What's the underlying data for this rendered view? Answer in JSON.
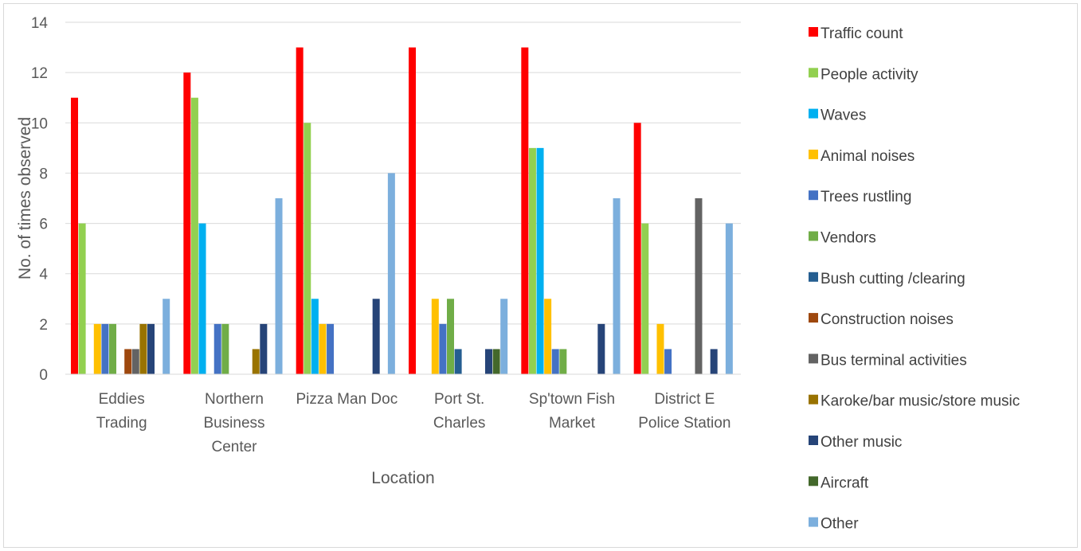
{
  "chart_data": {
    "type": "bar",
    "title": "",
    "xlabel": "Location",
    "ylabel": "No. of times observed",
    "ylim": [
      0,
      14
    ],
    "yticks": [
      0,
      2,
      4,
      6,
      8,
      10,
      12,
      14
    ],
    "grid": true,
    "legend_position": "right",
    "categories": [
      [
        "Eddies",
        "Trading"
      ],
      [
        "Northern",
        "Business",
        "Center"
      ],
      [
        "Pizza Man Doc"
      ],
      [
        "Port St.",
        "Charles"
      ],
      [
        "Sp'town Fish",
        "Market"
      ],
      [
        "District E",
        "Police Station"
      ]
    ],
    "series": [
      {
        "name": "Traffic count",
        "color": "#ff0000",
        "values": [
          11,
          12,
          13,
          13,
          13,
          10
        ]
      },
      {
        "name": "People activity",
        "color": "#92d050",
        "values": [
          6,
          11,
          10,
          0,
          9,
          6
        ]
      },
      {
        "name": "Waves",
        "color": "#00b0f0",
        "values": [
          0,
          6,
          3,
          0,
          9,
          0
        ]
      },
      {
        "name": "Animal noises",
        "color": "#ffc000",
        "values": [
          2,
          0,
          2,
          3,
          3,
          2
        ]
      },
      {
        "name": " Trees rustling",
        "color": "#4472c4",
        "values": [
          2,
          2,
          2,
          2,
          1,
          1
        ]
      },
      {
        "name": "Vendors",
        "color": "#70ad47",
        "values": [
          2,
          2,
          0,
          3,
          1,
          0
        ]
      },
      {
        "name": "Bush cutting /clearing",
        "color": "#255e91",
        "values": [
          0,
          0,
          0,
          1,
          0,
          0
        ]
      },
      {
        "name": "Construction noises",
        "color": "#9e480e",
        "values": [
          1,
          0,
          0,
          0,
          0,
          0
        ]
      },
      {
        "name": "Bus terminal activities",
        "color": "#636363",
        "values": [
          1,
          0,
          0,
          0,
          0,
          7
        ]
      },
      {
        "name": "Karoke/bar music/store music",
        "color": "#997300",
        "values": [
          2,
          1,
          0,
          0,
          0,
          0
        ]
      },
      {
        "name": "Other music",
        "color": "#264478",
        "values": [
          2,
          2,
          3,
          1,
          2,
          1
        ]
      },
      {
        "name": "Aircraft",
        "color": "#43682b",
        "values": [
          0,
          0,
          0,
          1,
          0,
          0
        ]
      },
      {
        "name": "Other",
        "color": "#7cafdd",
        "values": [
          3,
          7,
          8,
          3,
          7,
          6
        ]
      }
    ]
  }
}
